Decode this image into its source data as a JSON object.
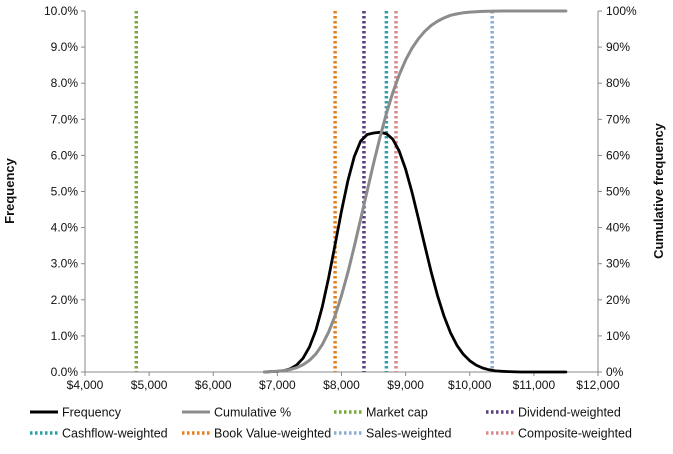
{
  "chart_data": {
    "type": "line",
    "title": "",
    "xlabel": "",
    "ylabel": "Frequency",
    "y2label": "Cumulative frequency",
    "xlim": [
      4000,
      12000
    ],
    "ylim": [
      0,
      0.1
    ],
    "y2lim": [
      0,
      1.0
    ],
    "grid": false,
    "legend_position": "bottom",
    "x_ticks": [
      "$4,000",
      "$5,000",
      "$6,000",
      "$7,000",
      "$8,000",
      "$9,000",
      "$10,000",
      "$11,000",
      "$12,000"
    ],
    "y_ticks": [
      "0.0%",
      "1.0%",
      "2.0%",
      "3.0%",
      "4.0%",
      "5.0%",
      "6.0%",
      "7.0%",
      "8.0%",
      "9.0%",
      "10.0%"
    ],
    "y2_ticks": [
      "0%",
      "10%",
      "20%",
      "30%",
      "40%",
      "50%",
      "60%",
      "70%",
      "80%",
      "90%",
      "100%"
    ],
    "x": [
      6800,
      6900,
      7000,
      7100,
      7200,
      7300,
      7400,
      7500,
      7600,
      7700,
      7800,
      7900,
      8000,
      8100,
      8200,
      8300,
      8400,
      8500,
      8600,
      8700,
      8800,
      8900,
      9000,
      9100,
      9200,
      9300,
      9400,
      9500,
      9600,
      9700,
      9800,
      9900,
      10000,
      10100,
      10200,
      10300,
      10400,
      10500,
      10600,
      10800,
      11000,
      11200,
      11500
    ],
    "series": [
      {
        "name": "Frequency",
        "axis": "left",
        "color": "#000000",
        "values": [
          0,
          0.0001,
          0.0002,
          0.0004,
          0.0009,
          0.0019,
          0.0038,
          0.0069,
          0.0116,
          0.0181,
          0.0262,
          0.0353,
          0.0446,
          0.053,
          0.0597,
          0.064,
          0.0658,
          0.0662,
          0.0664,
          0.066,
          0.0645,
          0.0612,
          0.0562,
          0.0498,
          0.0425,
          0.0349,
          0.0276,
          0.021,
          0.0154,
          0.0109,
          0.0074,
          0.0049,
          0.0031,
          0.0019,
          0.0011,
          0.0006,
          0.0003,
          0.0002,
          0.0001,
          0,
          0,
          0,
          0
        ]
      },
      {
        "name": "Cumulative %",
        "axis": "right",
        "color": "#8c8c8c",
        "values": [
          0,
          0.001,
          0.002,
          0.004,
          0.007,
          0.012,
          0.02,
          0.032,
          0.05,
          0.076,
          0.111,
          0.156,
          0.212,
          0.276,
          0.348,
          0.424,
          0.502,
          0.578,
          0.65,
          0.716,
          0.774,
          0.823,
          0.864,
          0.897,
          0.923,
          0.944,
          0.96,
          0.972,
          0.981,
          0.988,
          0.992,
          0.995,
          0.997,
          0.998,
          0.999,
          0.9995,
          0.9998,
          1.0,
          1.0,
          1.0,
          1.0,
          1.0,
          1.0
        ]
      }
    ],
    "reference_lines": [
      {
        "name": "Market cap",
        "x": 4800,
        "color": "#77a83a"
      },
      {
        "name": "Dividend-weighted",
        "x": 8350,
        "color": "#5c3f80"
      },
      {
        "name": "Cashflow-weighted",
        "x": 8700,
        "color": "#2e9fa8"
      },
      {
        "name": "Book Value-weighted",
        "x": 7900,
        "color": "#e6801f"
      },
      {
        "name": "Sales-weighted",
        "x": 10350,
        "color": "#8aaed6"
      },
      {
        "name": "Composite-weighted",
        "x": 8850,
        "color": "#d98a8a"
      }
    ],
    "legend": [
      {
        "name": "Frequency",
        "style": "solid-thick",
        "color": "#000000"
      },
      {
        "name": "Cumulative %",
        "style": "solid-thick",
        "color": "#8c8c8c"
      },
      {
        "name": "Market cap",
        "style": "dotted",
        "color": "#77a83a"
      },
      {
        "name": "Dividend-weighted",
        "style": "dotted",
        "color": "#5c3f80"
      },
      {
        "name": "Cashflow-weighted",
        "style": "dotted",
        "color": "#2e9fa8"
      },
      {
        "name": "Book Value-weighted",
        "style": "dotted",
        "color": "#e6801f"
      },
      {
        "name": "Sales-weighted",
        "style": "dotted",
        "color": "#8aaed6"
      },
      {
        "name": "Composite-weighted",
        "style": "dotted",
        "color": "#d98a8a"
      }
    ]
  }
}
